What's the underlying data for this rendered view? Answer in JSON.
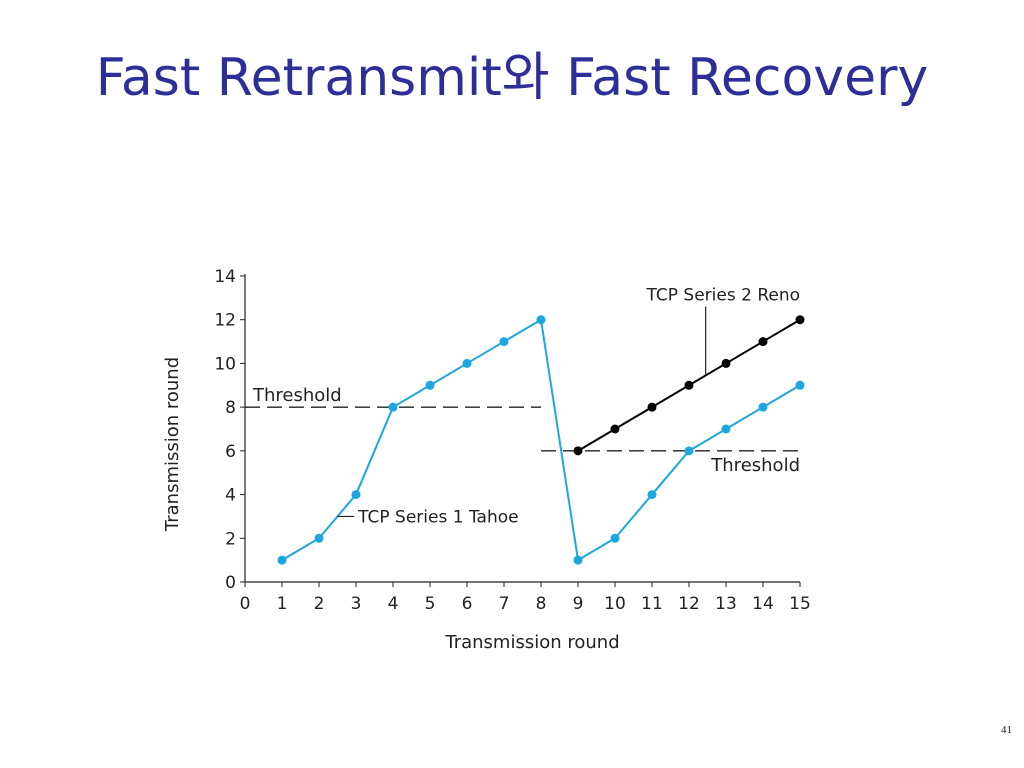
{
  "slide": {
    "title": "Fast Retransmit와 Fast Recovery",
    "page_number": "41"
  },
  "colors": {
    "title": "#2e2e99",
    "tahoe": "#1da6e0",
    "reno": "#000000",
    "axis": "#222222"
  },
  "chart_data": {
    "type": "line",
    "title": "",
    "xlabel": "Transmission round",
    "ylabel": "Transmission round",
    "xlim": [
      0,
      15
    ],
    "ylim": [
      0,
      14
    ],
    "xticks": [
      0,
      1,
      2,
      3,
      4,
      5,
      6,
      7,
      8,
      9,
      10,
      11,
      12,
      13,
      14,
      15
    ],
    "yticks": [
      0,
      2,
      4,
      6,
      8,
      10,
      12,
      14
    ],
    "grid": false,
    "series": [
      {
        "name": "TCP Series 1 Tahoe",
        "color": "#1da6e0",
        "x": [
          1,
          2,
          3,
          4,
          5,
          6,
          7,
          8,
          9,
          10,
          11,
          12,
          13,
          14,
          15
        ],
        "y": [
          1,
          2,
          4,
          8,
          9,
          10,
          11,
          12,
          1,
          2,
          4,
          6,
          7,
          8,
          9
        ]
      },
      {
        "name": "TCP Series 2 Reno",
        "color": "#000000",
        "x": [
          9,
          10,
          11,
          12,
          13,
          14,
          15
        ],
        "y": [
          6,
          7,
          8,
          9,
          10,
          11,
          12
        ]
      }
    ],
    "thresholds": [
      {
        "label": "Threshold",
        "y": 8,
        "x_from": 0,
        "x_to": 8
      },
      {
        "label": "Threshold",
        "y": 6,
        "x_from": 8,
        "x_to": 15
      }
    ]
  }
}
